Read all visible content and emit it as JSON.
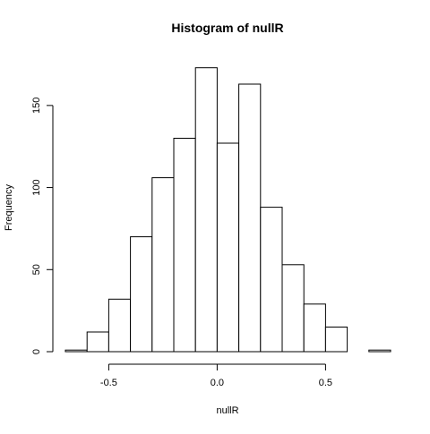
{
  "chart_data": {
    "type": "bar",
    "title": "Histogram of nullR",
    "xlabel": "nullR",
    "ylabel": "Frequency",
    "bin_edges": [
      -0.7,
      -0.6,
      -0.5,
      -0.4,
      -0.3,
      -0.2,
      -0.1,
      0.0,
      0.1,
      0.2,
      0.3,
      0.4,
      0.5,
      0.6,
      0.7,
      0.8
    ],
    "values": [
      1,
      12,
      32,
      70,
      106,
      130,
      173,
      127,
      163,
      88,
      53,
      29,
      15,
      0,
      1
    ],
    "xlim": [
      -0.7,
      0.8
    ],
    "ylim": [
      0,
      175
    ],
    "x_ticks": [
      -0.5,
      0.0,
      0.5
    ],
    "x_tick_labels": [
      "-0.5",
      "0.0",
      "0.5"
    ],
    "y_ticks": [
      0,
      50,
      100,
      150
    ],
    "y_tick_labels": [
      "0",
      "50",
      "100",
      "150"
    ],
    "grid": false,
    "legend": "none"
  }
}
